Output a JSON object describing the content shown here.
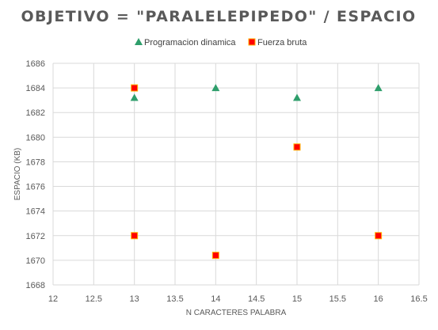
{
  "chart_data": {
    "type": "scatter",
    "title": "OBJETIVO = \"PARALELEPIPEDO\" / ESPACIO",
    "xlabel": "N CARACTERES PALABRA",
    "ylabel": "ESPACIO (KB)",
    "xlim": [
      12,
      16.5
    ],
    "ylim": [
      1668,
      1686
    ],
    "x_ticks": [
      "12",
      "12.5",
      "13",
      "13.5",
      "14",
      "14.5",
      "15",
      "15.5",
      "16",
      "16.5"
    ],
    "y_ticks": [
      "1668",
      "1670",
      "1672",
      "1674",
      "1676",
      "1678",
      "1680",
      "1682",
      "1684",
      "1686"
    ],
    "grid": "horizontal and vertical major",
    "legend": "top",
    "series": [
      {
        "name": "Programacion dinamica",
        "marker": "triangle",
        "color": "#2e9e6b",
        "points": [
          {
            "x": 13,
            "y": 1683.2
          },
          {
            "x": 14,
            "y": 1684.0
          },
          {
            "x": 15,
            "y": 1683.2
          },
          {
            "x": 16,
            "y": 1684.0
          }
        ]
      },
      {
        "name": "Fuerza bruta",
        "marker": "square",
        "color": "#ff0000",
        "edge_color": "#ffb300",
        "points": [
          {
            "x": 13,
            "y": 1684.0
          },
          {
            "x": 13,
            "y": 1672.0
          },
          {
            "x": 14,
            "y": 1670.4
          },
          {
            "x": 15,
            "y": 1679.2
          },
          {
            "x": 16,
            "y": 1672.0
          }
        ]
      }
    ]
  }
}
